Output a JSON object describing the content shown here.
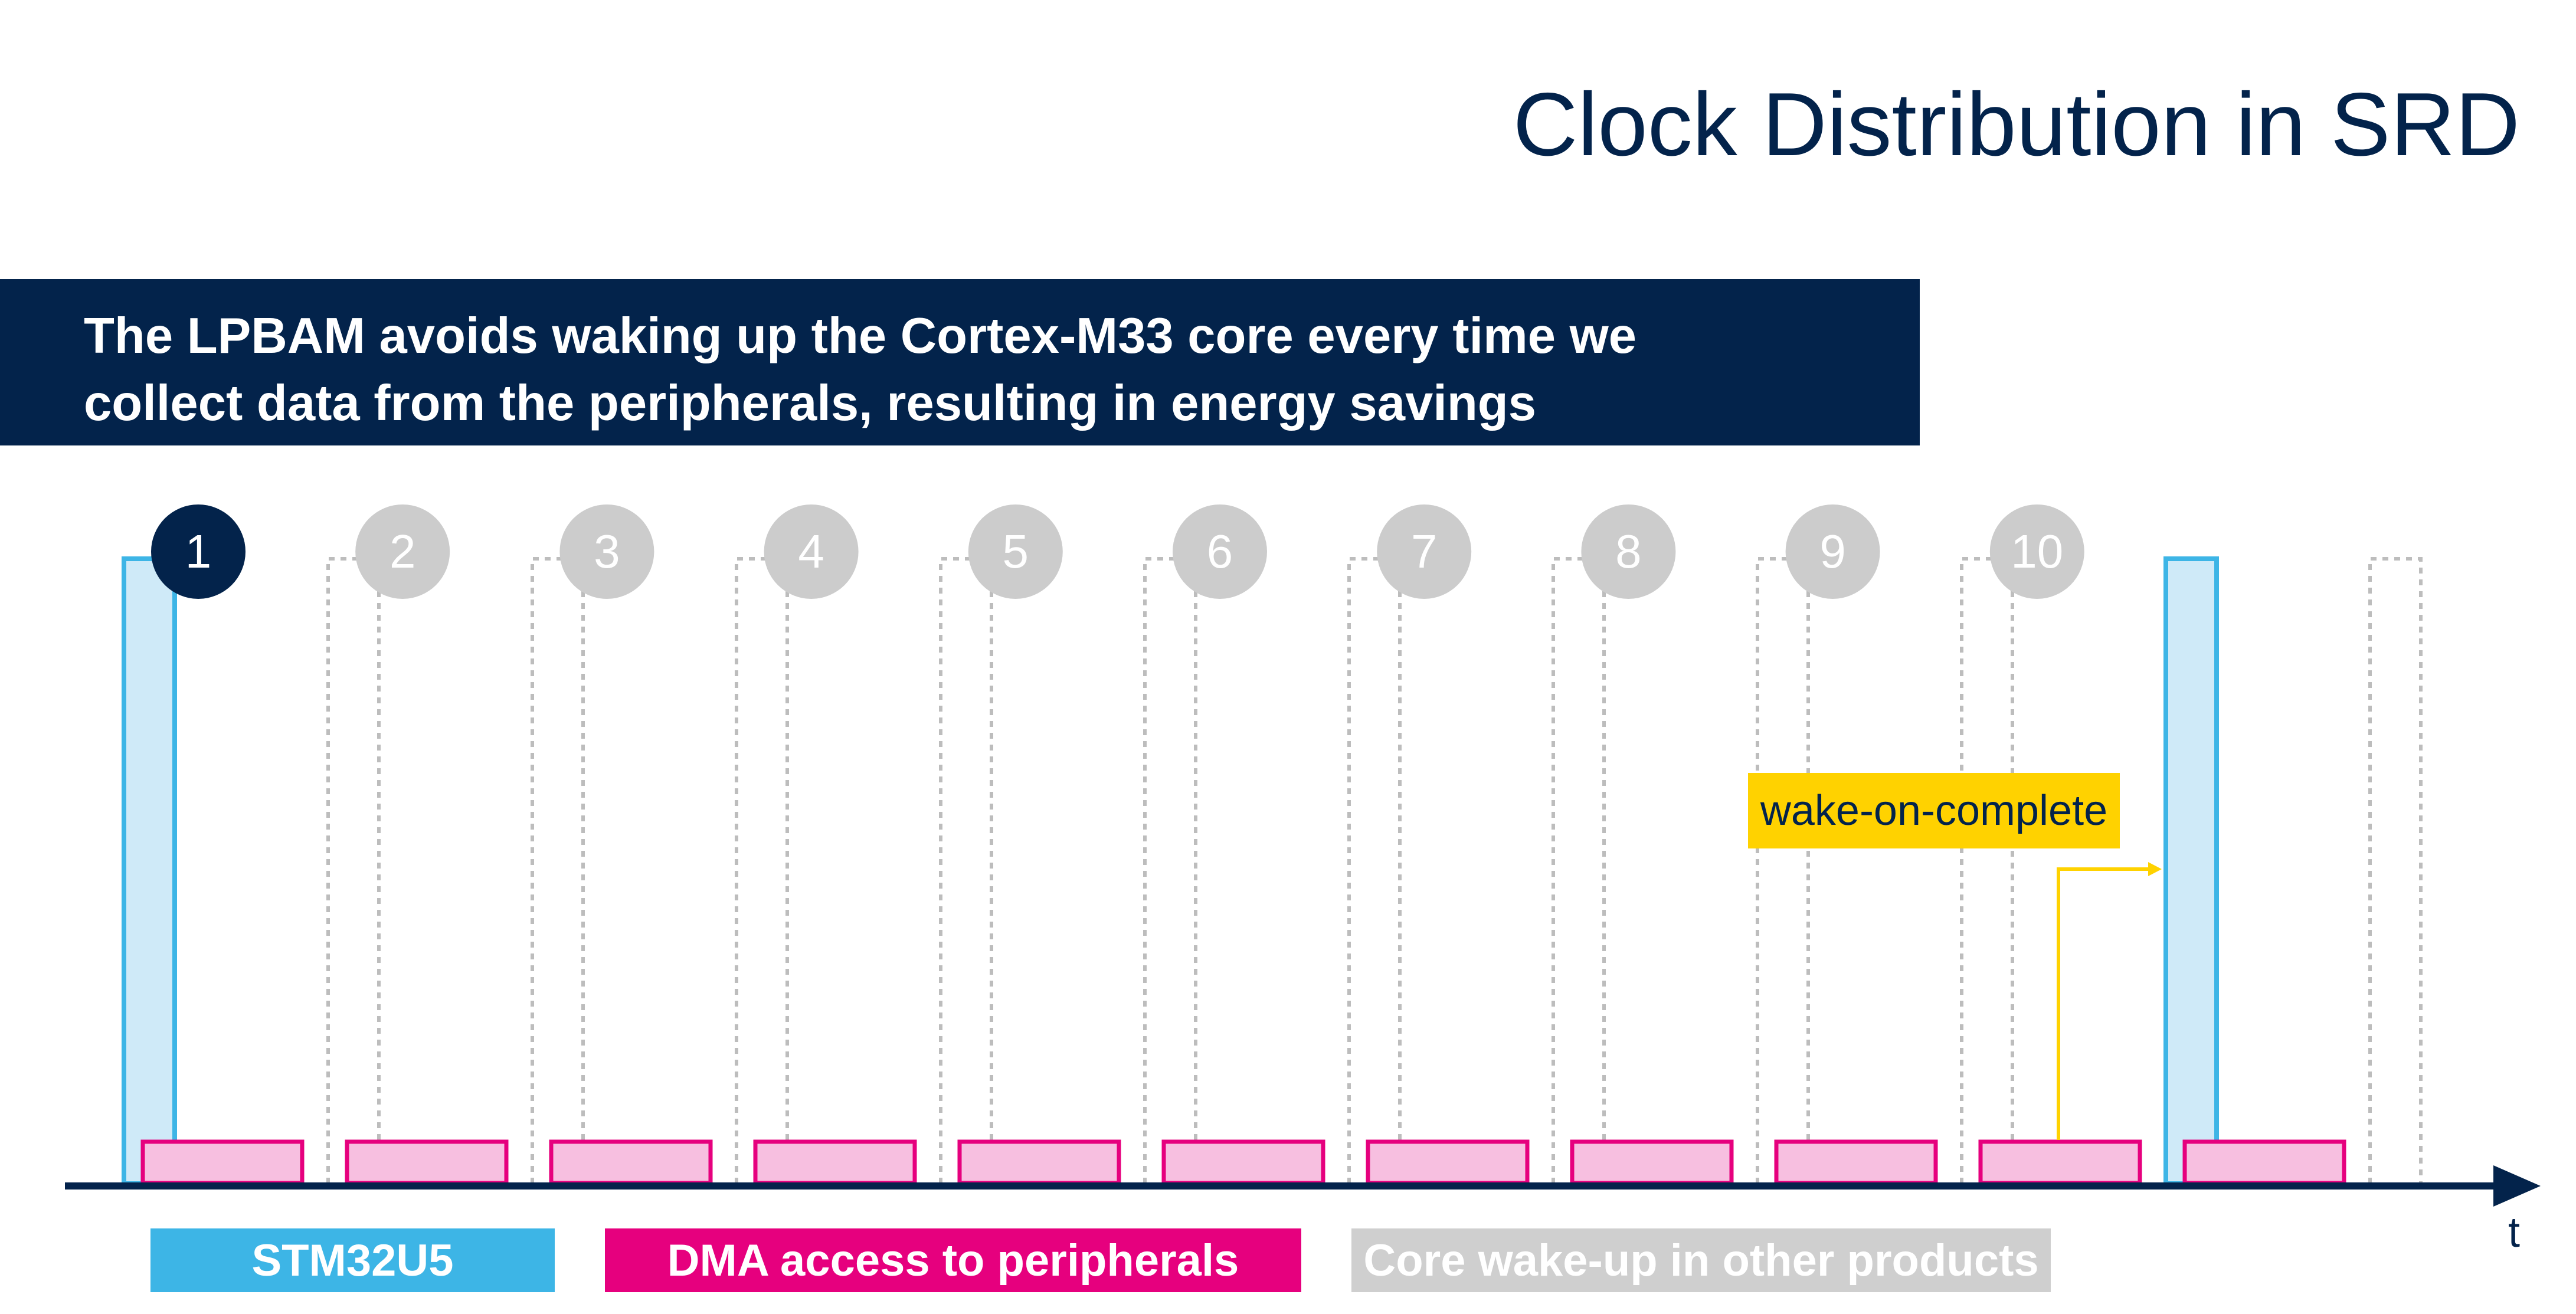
{
  "title": "Clock Distribution in SRD",
  "banner": {
    "line1": "The LPBAM avoids waking up the Cortex-M33 core every time we",
    "line2": "collect data from the peripherals, resulting in energy savings"
  },
  "steps": [
    "1",
    "2",
    "3",
    "4",
    "5",
    "6",
    "7",
    "8",
    "9",
    "10"
  ],
  "active_step": "1",
  "annotation": "wake-on-complete",
  "axis_label": "t",
  "legend": [
    {
      "label": "STM32U5",
      "color": "#3db5e6"
    },
    {
      "label": "DMA access to peripherals",
      "color": "#e6007e"
    },
    {
      "label": "Core wake-up in other products",
      "color": "#cfcfcf"
    }
  ],
  "colors": {
    "navy": "#03234b",
    "stm32u5_fill": "#cfeaf8",
    "stm32u5_stroke": "#3db5e6",
    "dma_fill": "#f7bfe0",
    "dma_stroke": "#e6007e",
    "inactive_step": "#cccccc",
    "dotted": "#bdbdbd",
    "wake_arrow": "#ffd200"
  }
}
